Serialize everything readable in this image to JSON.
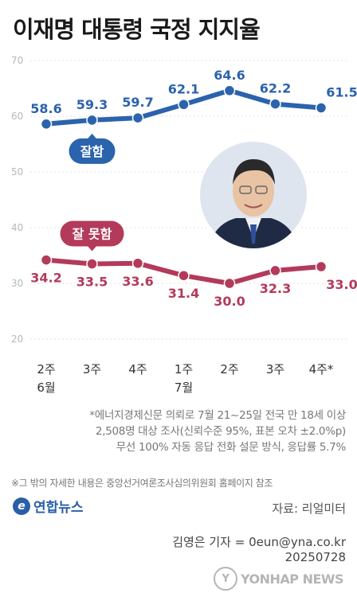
{
  "title": "이재명 대통령 국정 지지율",
  "chart_data": {
    "type": "line",
    "categories": [
      [
        "2주",
        "6월"
      ],
      [
        "3주",
        ""
      ],
      [
        "4주",
        ""
      ],
      [
        "1주",
        "7월"
      ],
      [
        "2주",
        ""
      ],
      [
        "3주",
        ""
      ],
      [
        "4주*",
        ""
      ]
    ],
    "ylim": [
      20,
      70
    ],
    "yticks": [
      20,
      30,
      40,
      50,
      60,
      70
    ],
    "grid": true,
    "series": [
      {
        "name": "잘함",
        "color": "#2b63ac",
        "values": [
          58.6,
          59.3,
          59.7,
          62.1,
          64.6,
          62.2,
          61.5
        ],
        "labels": [
          "58.6",
          "59.3",
          "59.7",
          "62.1",
          "64.6",
          "62.2",
          "61.5%"
        ]
      },
      {
        "name": "잘 못함",
        "color": "#b33a5a",
        "values": [
          34.2,
          33.5,
          33.6,
          31.4,
          30.0,
          32.3,
          33.0
        ],
        "labels": [
          "34.2",
          "33.5",
          "33.6",
          "31.4",
          "30.0",
          "32.3",
          "33.0%"
        ]
      }
    ]
  },
  "notes": [
    "*에너지경제신문 의뢰로 7월 21~25일 전국 만 18세 이상",
    "2,508명 대상 조사(신뢰수준 95%, 표본 오차 ±2.0%p)",
    "무선 100% 자동 응답 전화 설문 방식, 응답률 5.7%"
  ],
  "small_note": "※그 밖의 자세한 내용은 중앙선거여론조사심의위원회 홈페이지 참조",
  "logo": {
    "mark": "e",
    "text": "연합뉴스"
  },
  "source": "자료: 리얼미터",
  "credit_line": "김영은 기자 = 0eun@yna.co.kr",
  "date_code": "20250728",
  "watermark": {
    "mark": "Y",
    "text": "YONHAP NEWS"
  }
}
